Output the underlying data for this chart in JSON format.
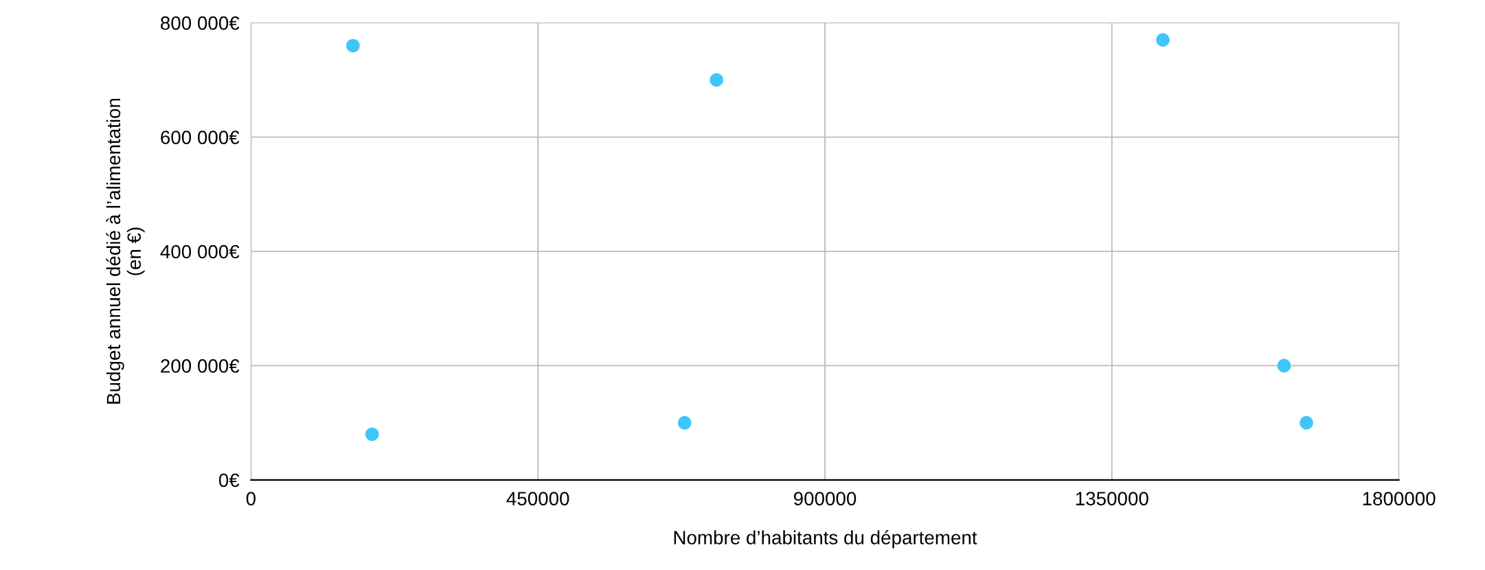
{
  "chart_data": {
    "type": "scatter",
    "xlabel": "Nombre d’habitants du département",
    "ylabel": "Budget annuel dédié à l’alimentation\n(en €)",
    "series": [
      {
        "color": "#3ec6fa",
        "x": [
          190000,
          160000,
          730000,
          680000,
          1430000,
          1620000,
          1655000
        ],
        "values": [
          80000,
          760000,
          700000,
          100000,
          770000,
          200000,
          100000
        ]
      }
    ],
    "xlim": [
      0,
      1800000
    ],
    "xticks": [
      0,
      450000,
      900000,
      1350000,
      1800000
    ],
    "ylim": [
      0,
      800000
    ],
    "yticks": [
      {
        "value": 0,
        "label": "0€"
      },
      {
        "value": 200000,
        "label": "200 000€"
      },
      {
        "value": 400000,
        "label": "400 000€"
      },
      {
        "value": 600000,
        "label": "600 000€"
      },
      {
        "value": 800000,
        "label": "800 000€"
      }
    ],
    "grid": true,
    "marker": "circle"
  }
}
